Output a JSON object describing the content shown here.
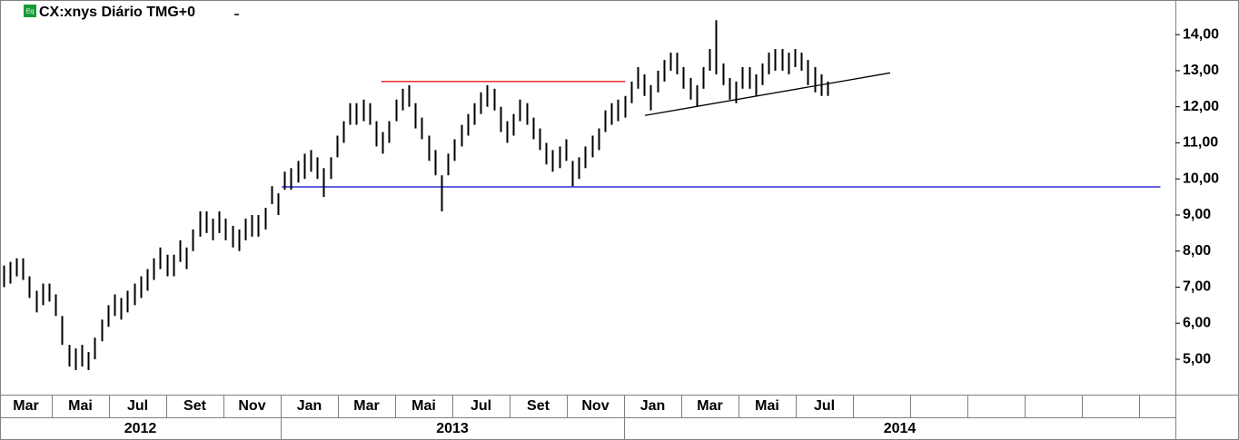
{
  "chart_data": {
    "type": "ohlc",
    "title": "CX:xnys Diário TMG+0",
    "badge": "Eq",
    "color": "#000000",
    "high": [
      7.6,
      7.7,
      7.8,
      7.8,
      7.3,
      6.9,
      7.1,
      7.1,
      6.8,
      6.2,
      5.4,
      5.3,
      5.4,
      5.2,
      5.6,
      6.1,
      6.5,
      6.8,
      6.7,
      6.9,
      7.1,
      7.3,
      7.5,
      7.8,
      8.1,
      7.9,
      7.9,
      8.3,
      8.1,
      8.6,
      9.1,
      9.1,
      8.9,
      9.1,
      8.9,
      8.7,
      8.6,
      8.9,
      9.0,
      9.0,
      9.2,
      9.8,
      9.6,
      10.2,
      10.3,
      10.5,
      10.7,
      10.8,
      10.6,
      10.3,
      10.6,
      11.2,
      11.6,
      12.1,
      12.1,
      12.2,
      12.1,
      11.6,
      11.3,
      11.6,
      12.2,
      12.5,
      12.6,
      12.1,
      11.7,
      11.2,
      10.8,
      10.1,
      10.7,
      11.1,
      11.5,
      11.8,
      12.1,
      12.4,
      12.6,
      12.5,
      12.0,
      11.6,
      11.8,
      12.2,
      12.1,
      11.7,
      11.4,
      11.0,
      10.8,
      10.9,
      11.1,
      10.5,
      10.6,
      10.9,
      11.2,
      11.4,
      11.9,
      12.1,
      12.2,
      12.3,
      12.7,
      13.1,
      12.9,
      12.6,
      13.0,
      13.3,
      13.5,
      13.5,
      13.1,
      12.8,
      12.6,
      13.1,
      13.6,
      14.4,
      13.2,
      12.8,
      12.7,
      13.1,
      13.1,
      12.9,
      13.2,
      13.5,
      13.6,
      13.6,
      13.5,
      13.6,
      13.5,
      13.3,
      13.1,
      12.9,
      12.7
    ],
    "low": [
      7.0,
      7.1,
      7.3,
      7.2,
      6.7,
      6.3,
      6.5,
      6.6,
      6.2,
      5.4,
      4.8,
      4.7,
      4.8,
      4.7,
      5.0,
      5.5,
      5.9,
      6.2,
      6.1,
      6.3,
      6.5,
      6.7,
      6.9,
      7.2,
      7.5,
      7.3,
      7.3,
      7.7,
      7.5,
      8.0,
      8.4,
      8.5,
      8.3,
      8.5,
      8.3,
      8.1,
      8.0,
      8.3,
      8.4,
      8.4,
      8.6,
      9.3,
      9.0,
      9.7,
      9.7,
      9.9,
      10.0,
      10.2,
      10.0,
      9.5,
      10.0,
      10.6,
      11.0,
      11.5,
      11.5,
      11.6,
      11.5,
      10.9,
      10.7,
      11.0,
      11.6,
      11.9,
      12.0,
      11.4,
      11.1,
      10.5,
      10.1,
      9.1,
      10.1,
      10.5,
      10.9,
      11.2,
      11.5,
      11.8,
      12.0,
      11.9,
      11.3,
      11.0,
      11.2,
      11.6,
      11.5,
      11.1,
      10.8,
      10.4,
      10.2,
      10.3,
      10.5,
      9.8,
      10.0,
      10.3,
      10.6,
      10.8,
      11.3,
      11.5,
      11.6,
      11.7,
      12.1,
      12.5,
      12.3,
      11.9,
      12.4,
      12.7,
      13.0,
      12.9,
      12.5,
      12.2,
      12.0,
      12.5,
      13.0,
      12.9,
      12.6,
      12.2,
      12.1,
      12.5,
      12.5,
      12.3,
      12.6,
      12.9,
      13.0,
      13.0,
      12.9,
      13.1,
      13.0,
      12.6,
      12.4,
      12.3,
      12.3
    ],
    "lines": [
      {
        "color": "#e00000",
        "x": [
          57.8,
          95.1
        ],
        "y": [
          12.7,
          12.7
        ]
      },
      {
        "color": "#0000cc",
        "x": [
          42.6,
          176.9
        ],
        "y": [
          9.78,
          9.78
        ]
      },
      {
        "color": "#000000",
        "x": [
          98.1,
          135.6
        ],
        "y": [
          11.76,
          12.94
        ]
      }
    ],
    "xlim": [
      -0.5,
      179.2
    ],
    "ylim": [
      4.02,
      14.96
    ],
    "yticks": [
      {
        "value": 5,
        "label": "5,00"
      },
      {
        "value": 6,
        "label": "6,00"
      },
      {
        "value": 7,
        "label": "7,00"
      },
      {
        "value": 8,
        "label": "8,00"
      },
      {
        "value": 9,
        "label": "9,00"
      },
      {
        "value": 10,
        "label": "10,00"
      },
      {
        "value": 11,
        "label": "11,00"
      },
      {
        "value": 12,
        "label": "12,00"
      },
      {
        "value": 13,
        "label": "13,00"
      },
      {
        "value": 14,
        "label": "14,00"
      }
    ],
    "months": [
      "Mar",
      "Mai",
      "Jul",
      "Set",
      "Nov",
      "Jan",
      "Mar",
      "Mai",
      "Jul",
      "Set",
      "Nov",
      "Jan",
      "Mar",
      "Mai",
      "Jul",
      null,
      null,
      null,
      null,
      null,
      null
    ],
    "years": [
      "2012",
      "2013",
      "2014"
    ]
  }
}
